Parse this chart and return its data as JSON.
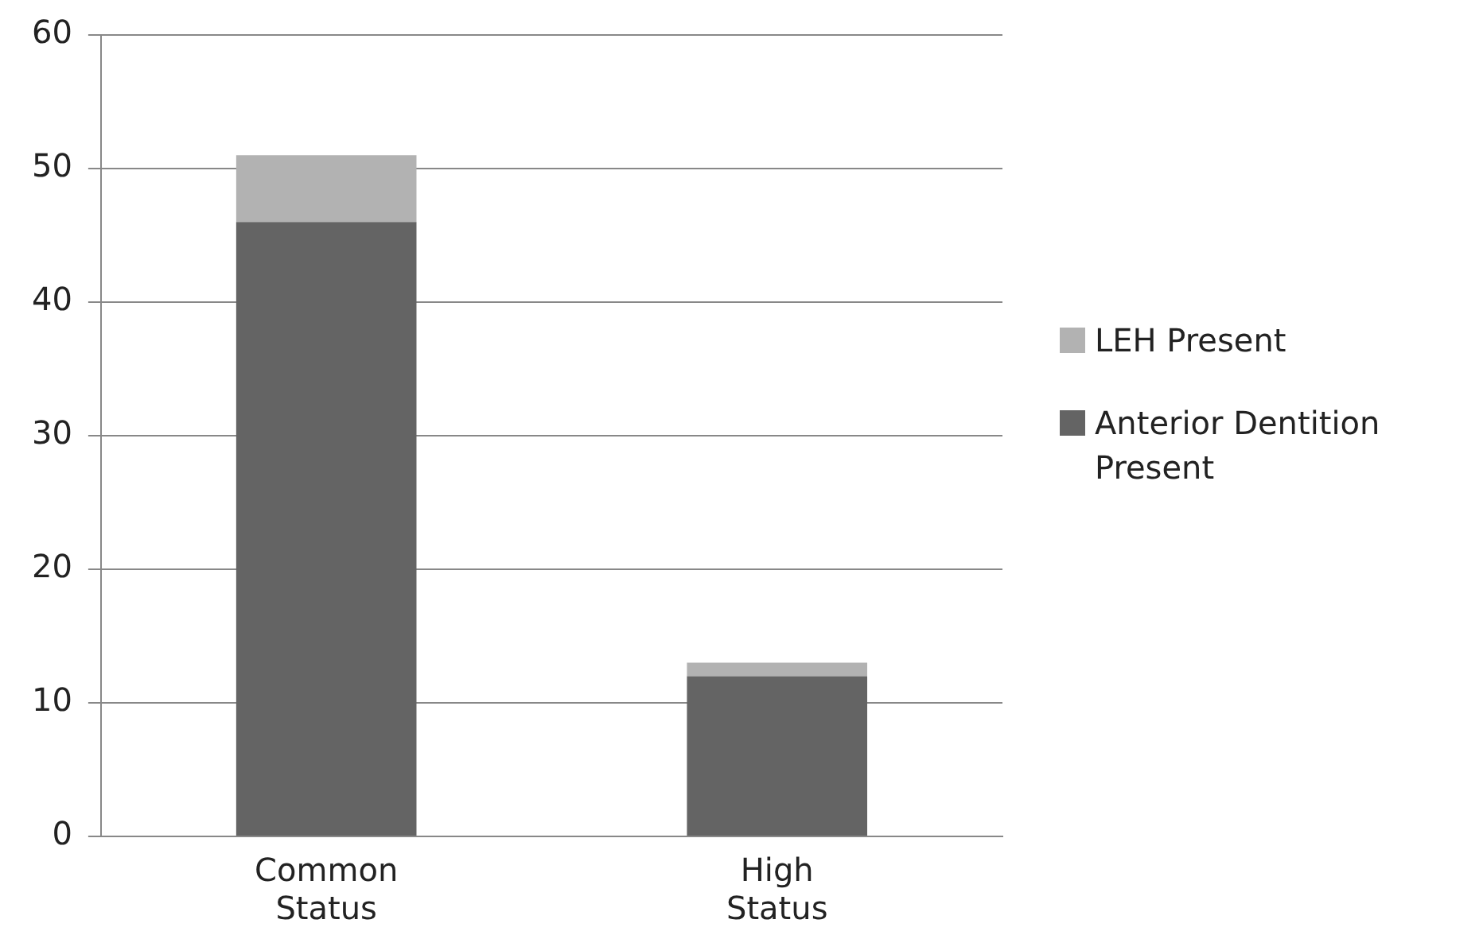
{
  "chart_data": {
    "type": "bar",
    "stacked": true,
    "categories": [
      "Common Status",
      "High Status"
    ],
    "series": [
      {
        "name": "Anterior Dentition Present",
        "color": "#646464",
        "values": [
          46,
          12
        ]
      },
      {
        "name": "LEH Present",
        "color": "#b2b2b2",
        "values": [
          5,
          1
        ]
      }
    ],
    "ylim": [
      0,
      60
    ],
    "yticks": [
      0,
      10,
      20,
      30,
      40,
      50,
      60
    ],
    "grid": "y",
    "legend": "right"
  }
}
